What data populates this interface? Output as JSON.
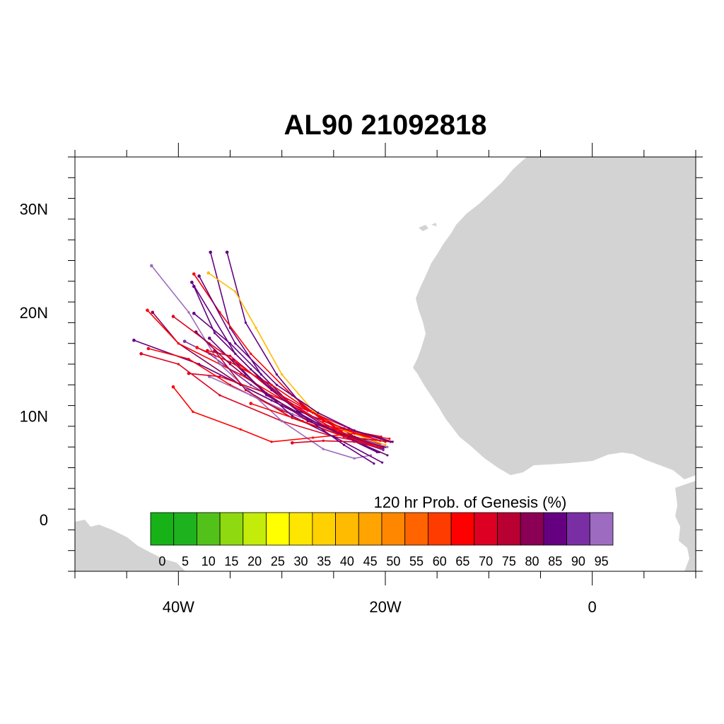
{
  "title": "AL90 21092818",
  "map": {
    "lon_range": [
      -50,
      10
    ],
    "lat_range": [
      -5,
      35
    ],
    "land_color": "#d3d3d3",
    "ocean_color": "#ffffff",
    "lon_ticks": [
      {
        "value": -40,
        "label": "40W"
      },
      {
        "value": -20,
        "label": "20W"
      },
      {
        "value": 0,
        "label": "0"
      }
    ],
    "lat_ticks": [
      {
        "value": 30,
        "label": "30N"
      },
      {
        "value": 20,
        "label": "20N"
      },
      {
        "value": 10,
        "label": "10N"
      },
      {
        "value": 0,
        "label": "0"
      }
    ]
  },
  "colorbar": {
    "title": "120 hr Prob. of Genesis (%)",
    "labels": [
      "0",
      "5",
      "10",
      "15",
      "20",
      "25",
      "30",
      "35",
      "40",
      "45",
      "50",
      "55",
      "60",
      "65",
      "70",
      "75",
      "80",
      "85",
      "90",
      "95"
    ],
    "colors": [
      "#17b217",
      "#1fb21f",
      "#52c21b",
      "#8ed90f",
      "#c3ec0a",
      "#ffff00",
      "#ffe600",
      "#ffd100",
      "#ffbb00",
      "#ffa400",
      "#ff8700",
      "#ff6400",
      "#ff3c00",
      "#ff0000",
      "#dd0022",
      "#b80033",
      "#8a0055",
      "#650080",
      "#7a2ea3",
      "#9d6cc0"
    ]
  },
  "tracks": [
    {
      "color": "#650080",
      "points": [
        [
          -20.2,
          6.8
        ],
        [
          -24,
          8
        ],
        [
          -28,
          10
        ],
        [
          -31,
          13
        ],
        [
          -35,
          17
        ],
        [
          -38.5,
          19.9
        ]
      ]
    },
    {
      "color": "#650080",
      "points": [
        [
          -20.8,
          6.5
        ],
        [
          -25,
          8.5
        ],
        [
          -29,
          11
        ],
        [
          -33,
          14.5
        ],
        [
          -36.5,
          18
        ],
        [
          -38.5,
          22.5
        ]
      ]
    },
    {
      "color": "#650080",
      "points": [
        [
          -19.5,
          7.5
        ],
        [
          -24,
          8.8
        ],
        [
          -28.5,
          10.5
        ],
        [
          -32,
          14
        ],
        [
          -35,
          18.5
        ],
        [
          -36.9,
          25.8
        ]
      ]
    },
    {
      "color": "#650080",
      "points": [
        [
          -20,
          7
        ],
        [
          -23,
          8
        ],
        [
          -28,
          11
        ],
        [
          -30.5,
          14
        ],
        [
          -33.5,
          19
        ],
        [
          -35.3,
          25.8
        ]
      ]
    },
    {
      "color": "#8a0055",
      "points": [
        [
          -20.5,
          7.2
        ],
        [
          -26,
          9
        ],
        [
          -30,
          11
        ],
        [
          -34,
          13
        ],
        [
          -40,
          17
        ],
        [
          -42.5,
          20
        ]
      ]
    },
    {
      "color": "#650080",
      "points": [
        [
          -19.8,
          6.2
        ],
        [
          -25,
          8.5
        ],
        [
          -31,
          11.5
        ],
        [
          -38,
          15
        ],
        [
          -44.3,
          17.3
        ]
      ]
    },
    {
      "color": "#ff0000",
      "points": [
        [
          -20.8,
          7
        ],
        [
          -24.5,
          8.5
        ],
        [
          -29,
          11
        ],
        [
          -34,
          14
        ],
        [
          -40,
          17
        ],
        [
          -43,
          20.2
        ]
      ]
    },
    {
      "color": "#dd0022",
      "points": [
        [
          -21,
          7.3
        ],
        [
          -25,
          8
        ],
        [
          -30,
          9.5
        ],
        [
          -36,
          12
        ],
        [
          -40,
          15
        ],
        [
          -43.6,
          16
        ]
      ]
    },
    {
      "color": "#ff0000",
      "points": [
        [
          -20,
          7.5
        ],
        [
          -25,
          8.8
        ],
        [
          -30,
          10.5
        ],
        [
          -35,
          13
        ],
        [
          -39,
          15.5
        ],
        [
          -42.9,
          16.5
        ]
      ]
    },
    {
      "color": "#ff0000",
      "points": [
        [
          -20.5,
          7.3
        ],
        [
          -26,
          9.5
        ],
        [
          -29,
          12
        ],
        [
          -33,
          16
        ],
        [
          -36,
          20
        ],
        [
          -38.5,
          23.7
        ]
      ]
    },
    {
      "color": "#ffbb00",
      "points": [
        [
          -20,
          7.2
        ],
        [
          -24,
          8.6
        ],
        [
          -27,
          10.5
        ],
        [
          -30,
          14
        ],
        [
          -32.5,
          18.5
        ],
        [
          -34.5,
          22
        ],
        [
          -37.1,
          23.8
        ]
      ]
    },
    {
      "color": "#7a2ea3",
      "points": [
        [
          -20.2,
          6.7
        ],
        [
          -24,
          8
        ],
        [
          -28,
          10
        ],
        [
          -33,
          13
        ],
        [
          -37,
          16
        ],
        [
          -39.4,
          17.2
        ]
      ]
    },
    {
      "color": "#9d6cc0",
      "points": [
        [
          -21.4,
          6.2
        ],
        [
          -23,
          5.9
        ],
        [
          -26,
          6.8
        ],
        [
          -30,
          9.5
        ],
        [
          -36,
          15
        ],
        [
          -39,
          20
        ],
        [
          -42.6,
          24.5
        ]
      ]
    },
    {
      "color": "#9d6cc0",
      "points": [
        [
          -19.8,
          7
        ],
        [
          -24.5,
          8.3
        ],
        [
          -29,
          10.2
        ],
        [
          -33,
          12
        ],
        [
          -37,
          13.8
        ]
      ]
    },
    {
      "color": "#dd0022",
      "points": [
        [
          -20.4,
          7
        ],
        [
          -23.8,
          8.2
        ],
        [
          -27,
          10.3
        ],
        [
          -31,
          12.5
        ],
        [
          -35,
          15.8
        ],
        [
          -37.2,
          16.3
        ]
      ]
    },
    {
      "color": "#ff0000",
      "points": [
        [
          -19.6,
          7.8
        ],
        [
          -23,
          8.3
        ],
        [
          -27,
          7.9
        ],
        [
          -31,
          7.5
        ],
        [
          -34,
          8.7
        ],
        [
          -38.6,
          10.4
        ],
        [
          -40.5,
          12.8
        ]
      ]
    },
    {
      "color": "#dd0022",
      "points": [
        [
          -20.9,
          7.7
        ],
        [
          -23.5,
          8.8
        ],
        [
          -27.5,
          10.5
        ],
        [
          -31.5,
          12.2
        ],
        [
          -36,
          13.8
        ],
        [
          -39,
          14.1
        ]
      ]
    },
    {
      "color": "#650080",
      "points": [
        [
          -20.3,
          5.5
        ],
        [
          -25,
          8
        ],
        [
          -29,
          10
        ],
        [
          -33.5,
          14
        ],
        [
          -37,
          17.5
        ]
      ]
    },
    {
      "color": "#650080",
      "points": [
        [
          -20.6,
          6.5
        ],
        [
          -26,
          9
        ],
        [
          -31.5,
          12
        ],
        [
          -34.7,
          15.4
        ]
      ]
    },
    {
      "color": "#dd0022",
      "points": [
        [
          -20.4,
          8
        ],
        [
          -25.5,
          9
        ],
        [
          -29.5,
          11.5
        ],
        [
          -33.5,
          14.5
        ],
        [
          -37,
          17
        ],
        [
          -40.5,
          19.6
        ]
      ]
    },
    {
      "color": "#b80033",
      "points": [
        [
          -19.5,
          7.5
        ],
        [
          -24,
          8
        ],
        [
          -29,
          9.8
        ],
        [
          -33.5,
          12.5
        ],
        [
          -36.5,
          16.3
        ]
      ]
    },
    {
      "color": "#ff0000",
      "points": [
        [
          -21.5,
          7.3
        ],
        [
          -24.5,
          8.2
        ],
        [
          -28,
          9.5
        ],
        [
          -33,
          11.2
        ]
      ]
    },
    {
      "color": "#ff0000",
      "points": [
        [
          -20.5,
          7.6
        ],
        [
          -24,
          8.7
        ],
        [
          -27,
          10.3
        ],
        [
          -31,
          13
        ],
        [
          -35,
          15.2
        ],
        [
          -38.2,
          16.6
        ]
      ]
    },
    {
      "color": "#650080",
      "points": [
        [
          -19.3,
          7.5
        ],
        [
          -23,
          8.6
        ],
        [
          -26.5,
          10.3
        ],
        [
          -30.5,
          13
        ],
        [
          -34.5,
          17
        ],
        [
          -38,
          23.5
        ]
      ]
    },
    {
      "color": "#8a0055",
      "points": [
        [
          -20.2,
          7
        ],
        [
          -23.5,
          8
        ],
        [
          -27.5,
          9.5
        ],
        [
          -31.5,
          12.2
        ],
        [
          -35,
          15
        ],
        [
          -38.3,
          18.1
        ]
      ]
    },
    {
      "color": "#dd0022",
      "points": [
        [
          -20.4,
          6.9
        ],
        [
          -23,
          7.5
        ],
        [
          -26,
          7.6
        ],
        [
          -29,
          7.4
        ]
      ]
    },
    {
      "color": "#650080",
      "points": [
        [
          -21.1,
          5.4
        ],
        [
          -24,
          7.2
        ],
        [
          -27.5,
          9.7
        ],
        [
          -31,
          12.5
        ],
        [
          -34.5,
          16
        ],
        [
          -38.7,
          22.9
        ]
      ]
    }
  ]
}
